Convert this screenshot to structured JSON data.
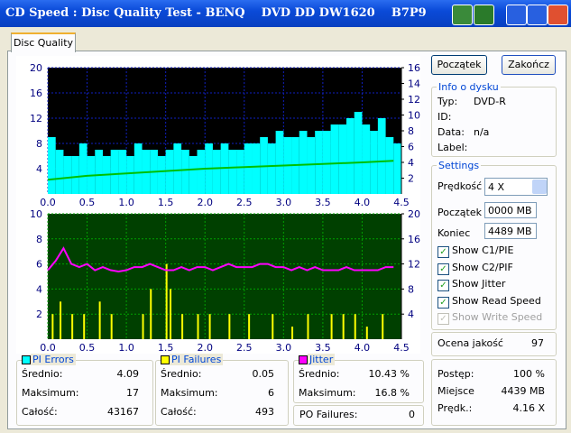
{
  "window": {
    "title": "CD Speed : Disc Quality Test - BENQ    DVD DD DW1620    B7P9"
  },
  "tab": "Disc Quality",
  "chart_data": [
    {
      "type": "bar",
      "xlim": [
        0,
        4.5
      ],
      "xticks": [
        {
          "value": 0,
          "label": "0.0"
        },
        0.5,
        {
          "value": 1,
          "label": "1.0"
        },
        1.5,
        {
          "value": 2,
          "label": "2.0"
        },
        2.5,
        {
          "value": 3,
          "label": "3.0"
        },
        3.5,
        {
          "value": 4,
          "label": "4.0"
        },
        4.5
      ],
      "ylim": [
        0,
        20
      ],
      "yticks": [
        4,
        8,
        12,
        16,
        20
      ],
      "y2lim": [
        0,
        16
      ],
      "y2ticks": [
        2,
        4,
        6,
        8,
        10,
        12,
        14,
        16
      ],
      "background": "#000000",
      "grid_color": "#1020c0",
      "grid": true,
      "series": [
        {
          "name": "PI Errors",
          "type": "bar",
          "color": "#00ffff",
          "x": [
            0,
            0.1,
            0.2,
            0.3,
            0.4,
            0.5,
            0.6,
            0.7,
            0.8,
            0.9,
            1,
            1.1,
            1.2,
            1.3,
            1.4,
            1.5,
            1.6,
            1.7,
            1.8,
            1.9,
            2,
            2.1,
            2.2,
            2.3,
            2.4,
            2.5,
            2.6,
            2.7,
            2.8,
            2.9,
            3,
            3.1,
            3.2,
            3.3,
            3.4,
            3.5,
            3.6,
            3.7,
            3.8,
            3.9,
            4,
            4.1,
            4.2,
            4.3,
            4.4
          ],
          "values": [
            9,
            7,
            6,
            6,
            8,
            6,
            7,
            6,
            7,
            7,
            6,
            8,
            7,
            7,
            6,
            7,
            8,
            7,
            6,
            7,
            8,
            7,
            8,
            7,
            7,
            8,
            8,
            9,
            8,
            10,
            9,
            9,
            10,
            9,
            10,
            10,
            11,
            11,
            12,
            13,
            11,
            10,
            12,
            9,
            8
          ]
        },
        {
          "name": "Read Speed",
          "type": "line",
          "axis": "y2",
          "color": "#00c000",
          "x": [
            0,
            0.5,
            1,
            1.5,
            2,
            2.5,
            3,
            3.5,
            4,
            4.4
          ],
          "values": [
            1.8,
            2.3,
            2.6,
            2.9,
            3.2,
            3.4,
            3.6,
            3.8,
            4.0,
            4.2
          ]
        }
      ]
    },
    {
      "type": "bar",
      "xlim": [
        0,
        4.5
      ],
      "xticks": [
        {
          "value": 0,
          "label": "0.0"
        },
        0.5,
        {
          "value": 1,
          "label": "1.0"
        },
        1.5,
        {
          "value": 2,
          "label": "2.0"
        },
        2.5,
        {
          "value": 3,
          "label": "3.0"
        },
        3.5,
        {
          "value": 4,
          "label": "4.0"
        },
        4.5
      ],
      "ylim": [
        0,
        10
      ],
      "yticks": [
        2,
        4,
        6,
        8,
        10
      ],
      "y2lim": [
        0,
        20
      ],
      "y2ticks": [
        4,
        8,
        12,
        16,
        20
      ],
      "background": "#004000",
      "grid_color": "#00a000",
      "grid": true,
      "series": [
        {
          "name": "PI Failures",
          "type": "bar",
          "color": "#ffff00",
          "x": [
            0.05,
            0.15,
            0.3,
            0.45,
            0.65,
            0.8,
            1.2,
            1.3,
            1.5,
            1.55,
            1.7,
            1.9,
            2.05,
            2.3,
            2.55,
            2.85,
            3.1,
            3.3,
            3.6,
            3.75,
            3.9,
            4.05,
            4.25
          ],
          "values": [
            2,
            3,
            2,
            2,
            3,
            2,
            2,
            4,
            6,
            4,
            2,
            2,
            2,
            2,
            2,
            2,
            1,
            2,
            2,
            2,
            2,
            1,
            2
          ]
        },
        {
          "name": "Jitter",
          "type": "line",
          "axis": "y2",
          "color": "#ff00ff",
          "x": [
            0,
            0.1,
            0.2,
            0.3,
            0.4,
            0.5,
            0.6,
            0.7,
            0.8,
            0.9,
            1,
            1.1,
            1.2,
            1.3,
            1.4,
            1.5,
            1.6,
            1.7,
            1.8,
            1.9,
            2,
            2.1,
            2.2,
            2.3,
            2.4,
            2.5,
            2.6,
            2.7,
            2.8,
            2.9,
            3,
            3.1,
            3.2,
            3.3,
            3.4,
            3.5,
            3.6,
            3.7,
            3.8,
            3.9,
            4,
            4.1,
            4.2,
            4.3,
            4.4
          ],
          "values": [
            11,
            12.5,
            14.5,
            12,
            11.5,
            12,
            11,
            11.5,
            11,
            10.8,
            11,
            11.5,
            11.5,
            12,
            11.5,
            11,
            11,
            11.5,
            11,
            11.5,
            11.5,
            11,
            11.5,
            12,
            11.5,
            11.5,
            11.5,
            12,
            12,
            11.5,
            11.5,
            11,
            11.5,
            11,
            11.5,
            11,
            11,
            11,
            11.5,
            11,
            11,
            11,
            11,
            11.5,
            11.5
          ]
        }
      ]
    }
  ],
  "stats": [
    {
      "title": "PI Errors",
      "color": "#00ffff",
      "rows": [
        [
          "Średnio:",
          "4.09"
        ],
        [
          "Maksimum:",
          "17"
        ],
        [
          "Całość:",
          "43167"
        ]
      ]
    },
    {
      "title": "PI Failures",
      "color": "#ffff00",
      "rows": [
        [
          "Średnio:",
          "0.05"
        ],
        [
          "Maksimum:",
          "6"
        ],
        [
          "Całość:",
          "493"
        ]
      ]
    },
    {
      "title": "Jitter",
      "color": "#ff00ff",
      "rows": [
        [
          "Średnio:",
          "10.43 %"
        ],
        [
          "Maksimum:",
          "16.8 %"
        ]
      ]
    }
  ],
  "po_failures": [
    "PO Failures:",
    "0"
  ],
  "buttons": [
    "Początek",
    "Zakończ"
  ],
  "disc_info": {
    "title": "Info o dysku",
    "rows": [
      [
        "Typ:",
        "DVD-R"
      ],
      [
        "ID:",
        ""
      ],
      [
        "Data:",
        "n/a"
      ],
      [
        "Label:",
        ""
      ]
    ]
  },
  "settings": {
    "title": "Settings",
    "speed": [
      "Prędkość",
      "4 X"
    ],
    "start": [
      "Początek",
      "0000 MB"
    ],
    "end": [
      "Koniec",
      "4489 MB"
    ],
    "checkboxes": [
      {
        "label": "Show C1/PIE",
        "checked": true,
        "enabled": true
      },
      {
        "label": "Show C2/PIF",
        "checked": true,
        "enabled": true
      },
      {
        "label": "Show Jitter",
        "checked": true,
        "enabled": true
      },
      {
        "label": "Show Read Speed",
        "checked": true,
        "enabled": true
      },
      {
        "label": "Show Write Speed",
        "checked": true,
        "enabled": false
      }
    ]
  },
  "quality": [
    "Ocena jakość",
    "97"
  ],
  "progress": [
    [
      "Postęp:",
      "100 %"
    ],
    [
      "Miejsce",
      "4439 MB"
    ],
    [
      "Prędk.:",
      "4.16 X"
    ]
  ]
}
